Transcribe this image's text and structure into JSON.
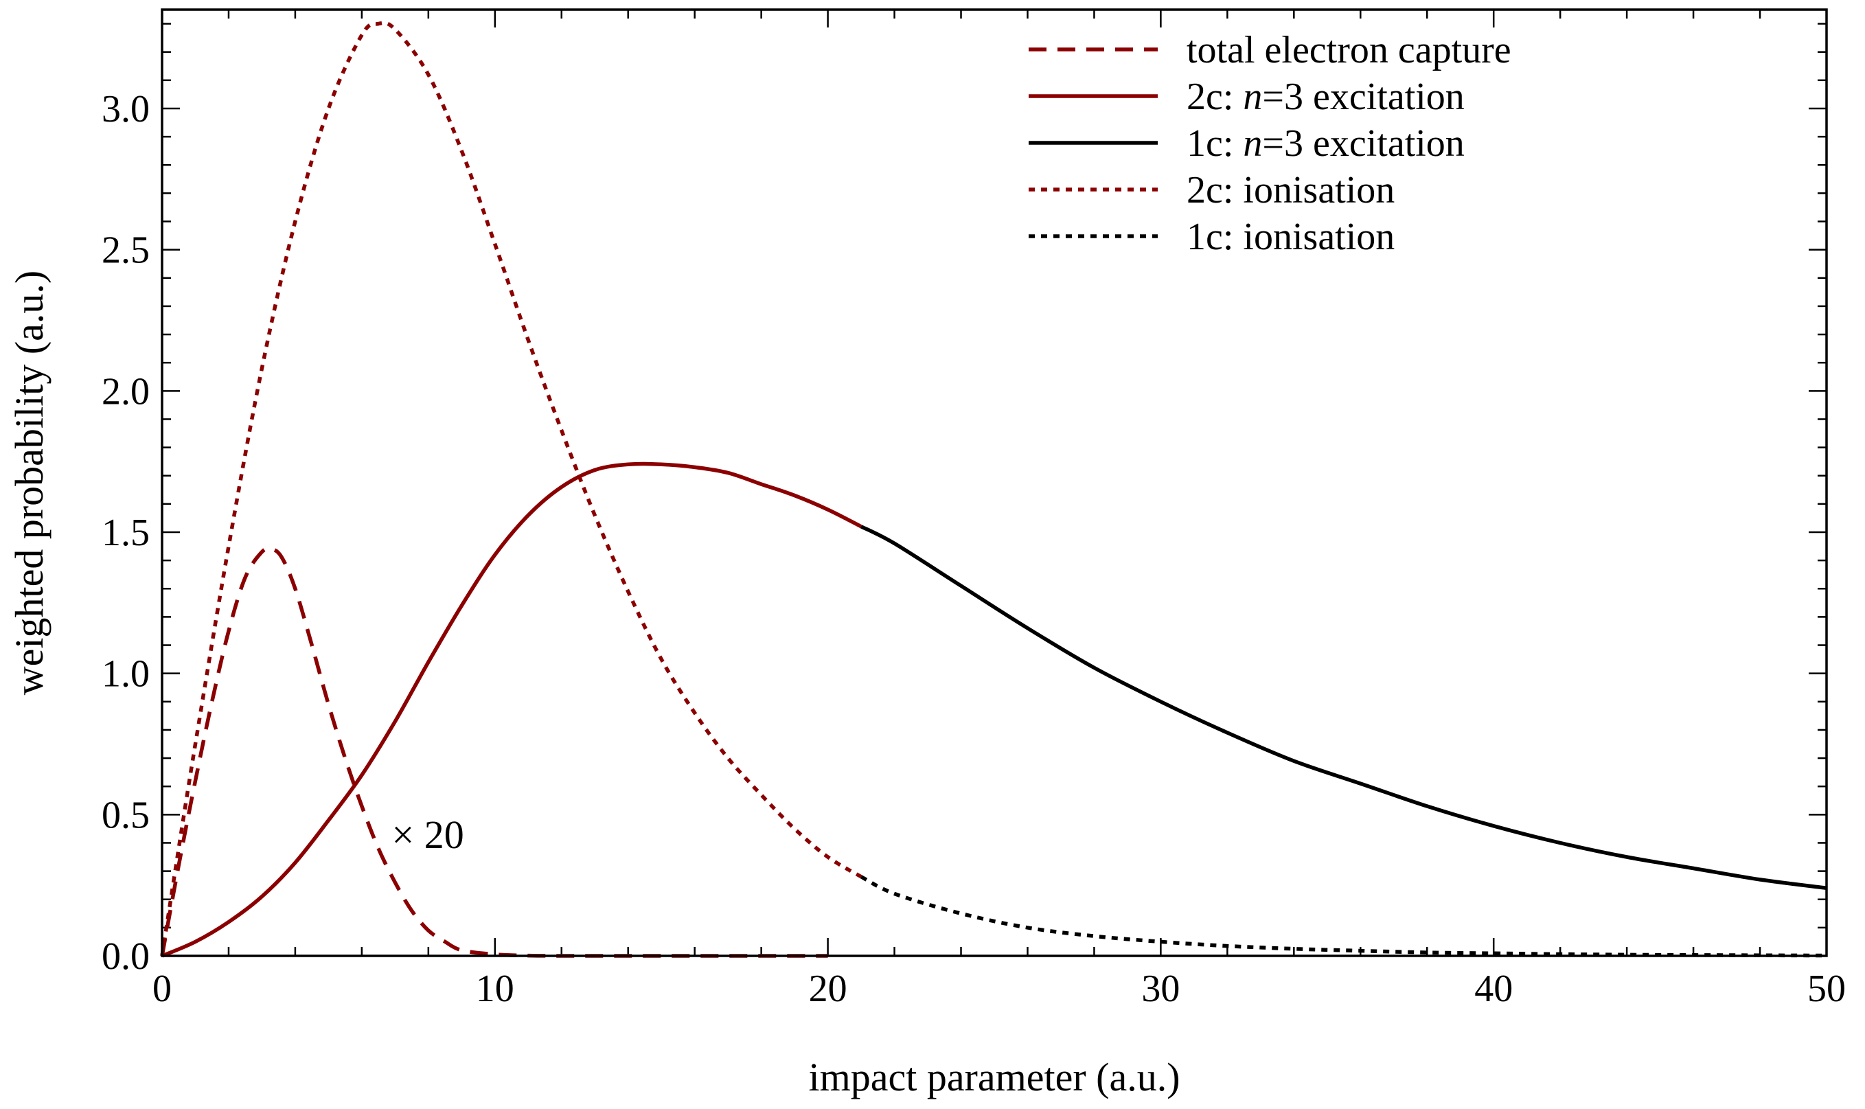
{
  "chart_data": {
    "type": "line",
    "title": "",
    "xlabel": "impact parameter (a.u.)",
    "ylabel": "weighted probability (a.u.)",
    "xlim": [
      0,
      50
    ],
    "ylim": [
      0,
      3.35
    ],
    "x_ticks": [
      0,
      10,
      20,
      30,
      40,
      50
    ],
    "x_tick_labels": [
      "0",
      "10",
      "20",
      "30",
      "40",
      "50"
    ],
    "y_ticks": [
      0.0,
      0.5,
      1.0,
      1.5,
      2.0,
      2.5,
      3.0
    ],
    "y_tick_labels": [
      "0.0",
      "0.5",
      "1.0",
      "1.5",
      "2.0",
      "2.5",
      "3.0"
    ],
    "x_minor_step": 2,
    "y_minor_step": 0.1,
    "grid": false,
    "legend_position": "top-right",
    "colors": {
      "darkred": "#8b0000",
      "black": "#000000"
    },
    "annotation": {
      "text": "× 20",
      "x": 6.9,
      "y": 0.43
    },
    "series": [
      {
        "name": "total electron capture",
        "color": "#8b0000",
        "dash": "dashed",
        "x": [
          0,
          0.5,
          1,
          1.5,
          2,
          2.5,
          3,
          3.3,
          3.6,
          4,
          4.5,
          5,
          5.5,
          6,
          6.5,
          7,
          7.5,
          8,
          8.5,
          9,
          10,
          11,
          12,
          14,
          16,
          18,
          20
        ],
        "y": [
          0,
          0.32,
          0.62,
          0.9,
          1.15,
          1.34,
          1.43,
          1.44,
          1.41,
          1.3,
          1.1,
          0.89,
          0.7,
          0.53,
          0.38,
          0.26,
          0.16,
          0.09,
          0.05,
          0.02,
          0.005,
          0.001,
          0,
          0,
          0,
          0,
          0
        ]
      },
      {
        "name": "2c: n=3 excitation",
        "color": "#8b0000",
        "dash": "solid",
        "x": [
          0,
          1,
          2,
          3,
          4,
          5,
          6,
          7,
          8,
          9,
          10,
          11,
          12,
          13,
          14,
          15,
          16,
          17,
          18,
          19,
          20,
          21
        ],
        "y": [
          0,
          0.05,
          0.12,
          0.21,
          0.33,
          0.48,
          0.64,
          0.83,
          1.04,
          1.24,
          1.42,
          1.56,
          1.66,
          1.72,
          1.74,
          1.74,
          1.73,
          1.71,
          1.67,
          1.63,
          1.58,
          1.52
        ]
      },
      {
        "name": "1c: n=3 excitation",
        "color": "#000000",
        "dash": "solid",
        "x": [
          21,
          22,
          24,
          26,
          28,
          30,
          32,
          34,
          36,
          38,
          40,
          42,
          44,
          46,
          48,
          50
        ],
        "y": [
          1.52,
          1.46,
          1.31,
          1.16,
          1.02,
          0.9,
          0.79,
          0.69,
          0.61,
          0.53,
          0.46,
          0.4,
          0.35,
          0.31,
          0.27,
          0.24
        ]
      },
      {
        "name": "2c: ionisation",
        "color": "#8b0000",
        "dash": "dotted",
        "x": [
          0,
          0.5,
          1,
          2,
          3,
          4,
          5,
          6,
          6.5,
          7,
          8,
          9,
          10,
          11,
          12,
          13,
          14,
          15,
          16,
          17,
          18,
          19,
          20,
          21
        ],
        "y": [
          0,
          0.38,
          0.75,
          1.45,
          2.08,
          2.6,
          3.0,
          3.26,
          3.3,
          3.28,
          3.12,
          2.85,
          2.52,
          2.18,
          1.86,
          1.56,
          1.29,
          1.05,
          0.86,
          0.7,
          0.57,
          0.45,
          0.35,
          0.28
        ]
      },
      {
        "name": "1c: ionisation",
        "color": "#000000",
        "dash": "dotted",
        "x": [
          21,
          22,
          24,
          26,
          28,
          30,
          32,
          34,
          36,
          38,
          40,
          42,
          44,
          46,
          48,
          50
        ],
        "y": [
          0.28,
          0.22,
          0.15,
          0.1,
          0.07,
          0.05,
          0.035,
          0.025,
          0.018,
          0.012,
          0.009,
          0.006,
          0.004,
          0.003,
          0.002,
          0.001
        ]
      }
    ],
    "legend": [
      {
        "prefix": "total electron capture",
        "italic": "",
        "suffix": ""
      },
      {
        "prefix": "2c: ",
        "italic": "n",
        "suffix": "=3 excitation"
      },
      {
        "prefix": "1c: ",
        "italic": "n",
        "suffix": "=3 excitation"
      },
      {
        "prefix": "2c: ionisation",
        "italic": "",
        "suffix": ""
      },
      {
        "prefix": "1c: ionisation",
        "italic": "",
        "suffix": ""
      }
    ]
  }
}
